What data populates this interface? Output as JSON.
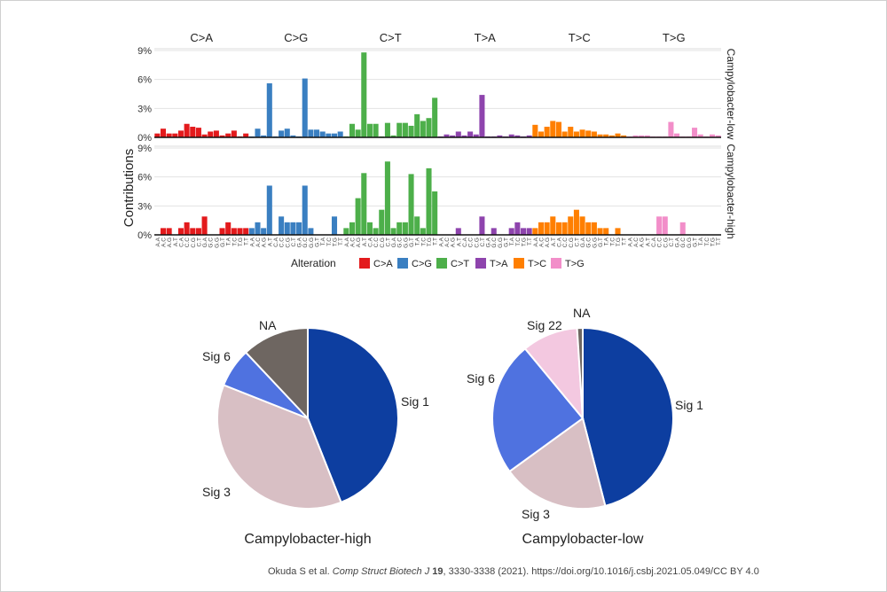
{
  "colors": {
    "C>A": "#e31a1c",
    "C>G": "#3a7fc1",
    "C>T": "#4daf4a",
    "T>A": "#8e44ad",
    "T>C": "#ff7f00",
    "T>G": "#f28ec9",
    "sig1": "#0d3ea0",
    "sig3": "#d8bfc4",
    "sig6": "#4f72e0",
    "sig22": "#f3c8e0",
    "na": "#6e6661"
  },
  "chart_data": [
    {
      "type": "bar",
      "ylabel": "Contributions",
      "ylim": [
        0,
        9
      ],
      "yticks": [
        "0%",
        "3%",
        "6%",
        "9%"
      ],
      "groups": [
        "C>A",
        "C>G",
        "C>T",
        "T>A",
        "T>C",
        "T>G"
      ],
      "contexts": [
        "A.A",
        "A.C",
        "A.G",
        "A.T",
        "C.A",
        "C.C",
        "C.G",
        "C.T",
        "G.A",
        "G.C",
        "G.G",
        "G.T",
        "T.A",
        "T.C",
        "T.G",
        "T.T"
      ],
      "legend_title": "Alteration",
      "series": [
        {
          "name": "Campylobacter-low",
          "values": [
            0.4,
            0.9,
            0.4,
            0.4,
            0.7,
            1.4,
            1.1,
            1.0,
            0.3,
            0.6,
            0.7,
            0.2,
            0.4,
            0.7,
            0.1,
            0.4,
            0.1,
            0.9,
            0.2,
            5.6,
            0.1,
            0.7,
            0.9,
            0.2,
            0.1,
            6.1,
            0.8,
            0.8,
            0.6,
            0.4,
            0.4,
            0.6,
            0.1,
            1.4,
            0.8,
            8.8,
            1.4,
            1.4,
            0.1,
            1.5,
            0.2,
            1.5,
            1.5,
            1.2,
            2.4,
            1.7,
            2.0,
            4.1,
            0.1,
            0.3,
            0.2,
            0.6,
            0.2,
            0.6,
            0.3,
            4.4,
            0.1,
            0.1,
            0.2,
            0.1,
            0.3,
            0.2,
            0.1,
            0.2,
            1.3,
            0.6,
            1.1,
            1.7,
            1.6,
            0.6,
            1.1,
            0.6,
            0.8,
            0.7,
            0.6,
            0.3,
            0.3,
            0.2,
            0.4,
            0.2,
            0.1,
            0.2,
            0.2,
            0.2,
            0.1,
            0.1,
            0.1,
            1.6,
            0.4,
            0.1,
            0.1,
            1.0,
            0.3,
            0.1,
            0.3,
            0.2
          ]
        },
        {
          "name": "Campylobacter-high",
          "values": [
            0.0,
            0.7,
            0.7,
            0.0,
            0.7,
            1.3,
            0.7,
            0.7,
            1.9,
            0.0,
            0.0,
            0.7,
            1.3,
            0.7,
            0.7,
            0.7,
            0.7,
            1.3,
            0.7,
            5.1,
            0.0,
            1.9,
            1.3,
            1.3,
            1.3,
            5.1,
            0.7,
            0.0,
            0.0,
            0.0,
            1.9,
            0.0,
            0.7,
            1.3,
            3.8,
            6.4,
            1.3,
            0.7,
            2.6,
            7.6,
            0.7,
            1.3,
            1.3,
            6.3,
            1.9,
            0.7,
            6.9,
            4.5,
            0.0,
            0.0,
            0.0,
            0.7,
            0.0,
            0.0,
            0.0,
            1.9,
            0.0,
            0.7,
            0.0,
            0.0,
            0.7,
            1.3,
            0.7,
            0.7,
            0.7,
            1.3,
            1.3,
            1.9,
            1.3,
            1.3,
            1.9,
            2.6,
            1.9,
            1.3,
            1.3,
            0.7,
            0.7,
            0.0,
            0.7,
            0.0,
            0.0,
            0.0,
            0.0,
            0.0,
            0.0,
            1.9,
            1.9,
            0.0,
            0.0,
            1.3,
            0.0,
            0.0,
            0.0,
            0.0,
            0.0,
            0.0
          ]
        }
      ]
    },
    {
      "type": "pie",
      "title": "Campylobacter-high",
      "categories": [
        "Sig 1",
        "Sig 3",
        "Sig 6",
        "NA"
      ],
      "values": [
        44,
        37,
        7,
        12
      ]
    },
    {
      "type": "pie",
      "title": "Campylobacter-low",
      "categories": [
        "Sig 1",
        "Sig 3",
        "Sig 6",
        "Sig 22",
        "NA"
      ],
      "values": [
        46,
        19,
        24,
        10,
        1
      ]
    }
  ],
  "citation": {
    "authors": "Okuda S et al.",
    "journal": "Comp Struct Biotech J",
    "volume": "19",
    "rest": ", 3330-3338 (2021). https://doi.org/10.1016/j.csbj.2021.05.049/CC BY 4.0"
  }
}
